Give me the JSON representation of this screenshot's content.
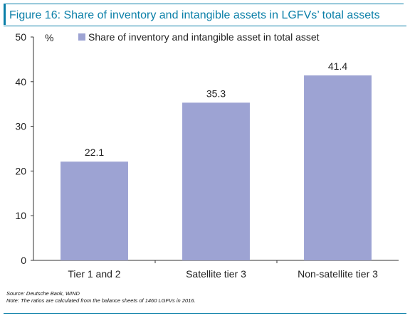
{
  "figure": {
    "title": "Figure 16: Share of inventory and intangible assets in LGFVs’ total assets",
    "source": "Source: Deutsche Bank, WIND",
    "note": "Note: The ratios are calculated from the balance sheets of 1460 LGFVs in 2016."
  },
  "colors": {
    "accent": "#0a7fa8",
    "bar": "#9da3d3"
  },
  "chart_data": {
    "type": "bar",
    "title": "",
    "ylabel": "%",
    "xlabel": "",
    "ylim": [
      0,
      50
    ],
    "yticks": [
      0,
      10,
      20,
      30,
      40,
      50
    ],
    "grid": false,
    "legend": "top",
    "categories": [
      "Tier 1 and 2",
      "Satellite tier 3",
      "Non-satellite tier 3"
    ],
    "series": [
      {
        "name": "Share of inventory and intangible asset in total asset",
        "values": [
          22.1,
          35.3,
          41.4
        ]
      }
    ],
    "data_labels": [
      "22.1",
      "35.3",
      "41.4"
    ]
  }
}
